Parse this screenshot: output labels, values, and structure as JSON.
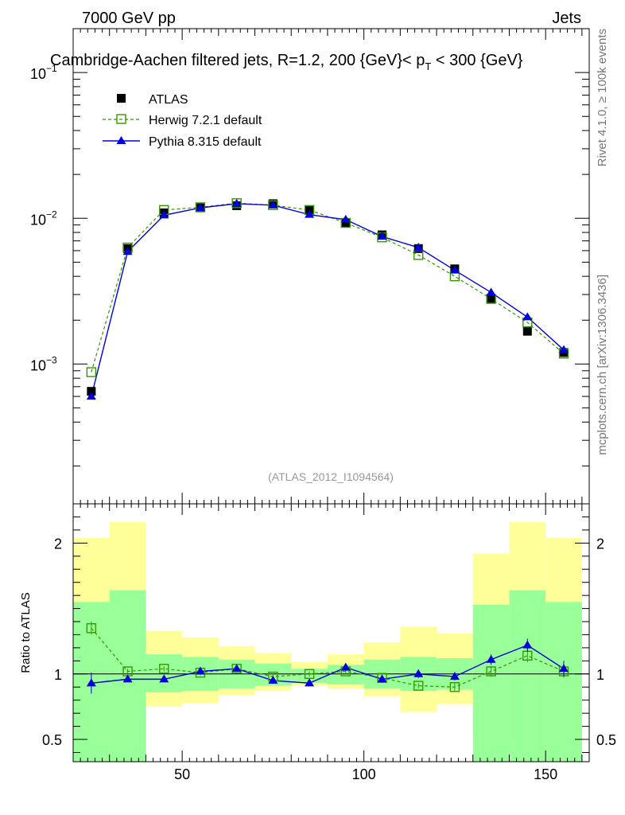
{
  "header": {
    "left": "7000 GeV pp",
    "right": "Jets",
    "title_main": "Cambridge-Aachen filtered jets, R=1.2, 200 {GeV}< p",
    "title_sub": "T",
    "title_tail": " < 300 {GeV}"
  },
  "side": {
    "rivet": "Rivet 4.1.0, ≥ 100k events",
    "mcplots": "mcplots.cern.ch [arXiv:1306.3436]"
  },
  "watermark": "(ATLAS_2012_I1094564)",
  "legend": {
    "atlas": "ATLAS",
    "herwig": "Herwig 7.2.1 default",
    "pythia": "Pythia 8.315 default"
  },
  "ratio_ylabel": "Ratio to ATLAS",
  "colors": {
    "herwig": "#339900",
    "pythia": "#0000dd",
    "band_inner": "#99ff99",
    "band_outer": "#ffff99"
  },
  "chart_data": {
    "type": "scatter",
    "x_range": [
      20,
      162
    ],
    "x_ticks": [
      50,
      100,
      150
    ],
    "x_tick_labels": [
      "50",
      "100",
      "150"
    ],
    "main": {
      "yscale": "log",
      "ylim": [
        0.00011,
        0.2
      ],
      "y_tick_labels": [
        {
          "value": 0.1,
          "mant": "10",
          "exp": "−1"
        },
        {
          "value": 0.01,
          "mant": "10",
          "exp": "−2"
        },
        {
          "value": 0.001,
          "mant": "10",
          "exp": "−3"
        }
      ]
    },
    "ratio": {
      "ylim": [
        0.33,
        2.3
      ],
      "y_ticks": [
        0.5,
        1,
        2
      ],
      "y_tick_labels": [
        "0.5",
        "1",
        "2"
      ]
    },
    "x": [
      25,
      35,
      45,
      55,
      65,
      75,
      85,
      95,
      105,
      115,
      125,
      135,
      145,
      155
    ],
    "bin_edges": [
      20,
      30,
      40,
      50,
      60,
      70,
      80,
      90,
      100,
      110,
      120,
      130,
      140,
      150,
      160
    ],
    "series": [
      {
        "name": "ATLAS",
        "style": "data",
        "values": [
          0.00065,
          0.0062,
          0.0109,
          0.0118,
          0.0122,
          0.0126,
          0.0113,
          0.0093,
          0.0077,
          0.0062,
          0.0045,
          0.0028,
          0.00168,
          0.0012
        ]
      },
      {
        "name": "Herwig 7.2.1 default",
        "style": "herwig",
        "values": [
          0.00088,
          0.0063,
          0.0114,
          0.0119,
          0.0127,
          0.0123,
          0.0114,
          0.0093,
          0.0074,
          0.0056,
          0.004,
          0.0028,
          0.00193,
          0.00118
        ],
        "ratio": [
          1.35,
          1.02,
          1.04,
          1.01,
          1.04,
          0.98,
          1.0,
          1.02,
          0.97,
          0.91,
          0.9,
          1.02,
          1.14,
          1.02
        ],
        "ratio_err": [
          0.05,
          0.02,
          0.02,
          0.02,
          0.02,
          0.02,
          0.02,
          0.02,
          0.02,
          0.02,
          0.03,
          0.04,
          0.05,
          0.05
        ]
      },
      {
        "name": "Pythia 8.315 default",
        "style": "pythia",
        "values": [
          0.0006,
          0.0059,
          0.0105,
          0.0118,
          0.0126,
          0.0123,
          0.0106,
          0.0098,
          0.0075,
          0.0063,
          0.0044,
          0.0031,
          0.0021,
          0.00125
        ],
        "ratio": [
          0.93,
          0.96,
          0.96,
          1.02,
          1.04,
          0.95,
          0.93,
          1.05,
          0.96,
          1.0,
          0.98,
          1.11,
          1.22,
          1.04
        ],
        "ratio_err": [
          0.08,
          0.02,
          0.02,
          0.02,
          0.02,
          0.02,
          0.02,
          0.02,
          0.02,
          0.03,
          0.03,
          0.04,
          0.05,
          0.06
        ]
      }
    ],
    "uncertainty_bands": {
      "inner_lo": [
        0.33,
        0.33,
        0.86,
        0.87,
        0.89,
        0.91,
        0.93,
        0.92,
        0.89,
        0.87,
        0.88,
        0.33,
        0.33,
        0.33
      ],
      "inner_hi": [
        1.55,
        1.64,
        1.15,
        1.13,
        1.11,
        1.08,
        1.04,
        1.07,
        1.11,
        1.13,
        1.12,
        1.53,
        1.64,
        1.55
      ],
      "outer_lo": [
        0.43,
        0.33,
        0.75,
        0.78,
        0.84,
        0.87,
        0.91,
        0.89,
        0.83,
        0.71,
        0.77,
        0.52,
        0.33,
        0.43
      ],
      "outer_hi": [
        2.04,
        2.16,
        1.33,
        1.28,
        1.21,
        1.16,
        1.09,
        1.15,
        1.24,
        1.36,
        1.31,
        1.92,
        2.16,
        2.04
      ]
    }
  }
}
